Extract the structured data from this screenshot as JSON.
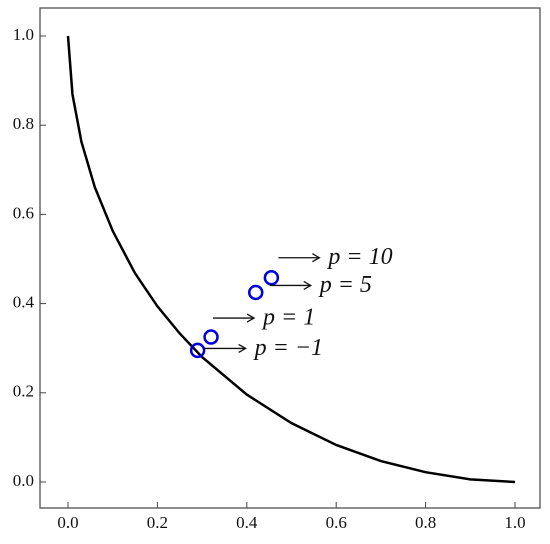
{
  "chart_data": {
    "type": "line",
    "series": [
      {
        "kind": "curve",
        "color": "#000000",
        "x": [
          0,
          0.01,
          0.03,
          0.06,
          0.1,
          0.15,
          0.2,
          0.25,
          0.3,
          0.4,
          0.5,
          0.6,
          0.7,
          0.8,
          0.9,
          1
        ],
        "values": [
          1,
          0.869,
          0.763,
          0.661,
          0.563,
          0.468,
          0.394,
          0.333,
          0.28,
          0.196,
          0.132,
          0.083,
          0.047,
          0.022,
          0.006,
          0
        ]
      },
      {
        "kind": "points",
        "color": "#0000dd",
        "x": [
          0.29,
          0.32,
          0.42,
          0.455
        ],
        "values": [
          0.295,
          0.325,
          0.425,
          0.458
        ]
      }
    ],
    "annotations": [
      "p = −1",
      "p = 1",
      "p = 5",
      "p = 10"
    ],
    "xlim": [
      0,
      1
    ],
    "ylim": [
      0,
      1
    ],
    "xticks": [
      {
        "value": 0,
        "label": "0.0"
      },
      0.2,
      0.4,
      0.6,
      0.8,
      {
        "value": 1,
        "label": "1.0"
      }
    ],
    "yticks": [
      {
        "value": 0,
        "label": "0.0"
      },
      0.2,
      0.4,
      0.6,
      0.8,
      {
        "value": 1,
        "label": "1.0"
      }
    ]
  }
}
